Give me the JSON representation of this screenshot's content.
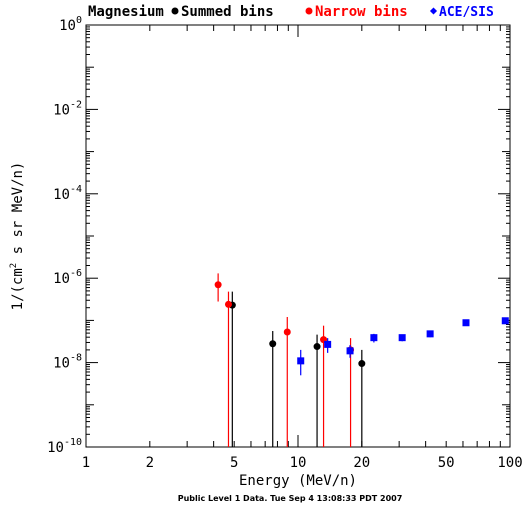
{
  "legend": {
    "species": "Magnesium",
    "summed": "Summed bins",
    "narrow": "Narrow bins",
    "ace": "ACE/SIS"
  },
  "footer": "Public Level 1 Data. Tue Sep  4 13:08:33 PDT 2007",
  "colors": {
    "summed": "#000000",
    "narrow": "#ff0000",
    "ace": "#0000ff"
  },
  "chart_data": {
    "type": "scatter",
    "xlabel": "Energy (MeV/n)",
    "ylabel_main": "1/(cm",
    "ylabel_sup": "2",
    "ylabel_rest": " s sr MeV/n)",
    "x_scale": "log",
    "y_scale": "log",
    "xlim": [
      1,
      100
    ],
    "ylim": [
      1e-10,
      1
    ],
    "x_ticks": [
      {
        "v": 1,
        "label": "1"
      },
      {
        "v": 2,
        "label": "2"
      },
      {
        "v": 5,
        "label": "5"
      },
      {
        "v": 10,
        "label": "10"
      },
      {
        "v": 20,
        "label": "20"
      },
      {
        "v": 50,
        "label": "50"
      },
      {
        "v": 100,
        "label": "100"
      }
    ],
    "y_ticks": [
      {
        "v": 1,
        "base": "10",
        "exp": "0"
      },
      {
        "v": 0.01,
        "base": "10",
        "exp": "-2"
      },
      {
        "v": 0.0001,
        "base": "10",
        "exp": "-4"
      },
      {
        "v": 1e-06,
        "base": "10",
        "exp": "-6"
      },
      {
        "v": 1e-08,
        "base": "10",
        "exp": "-8"
      },
      {
        "v": 1e-10,
        "base": "10",
        "exp": "-10"
      }
    ],
    "series": [
      {
        "name": "Summed bins",
        "color": "#000000",
        "marker": "circle",
        "points": [
          {
            "x": 4.9,
            "y": 2.3e-07,
            "ylo": 1e-10,
            "yhi": 4.8e-07,
            "xerr": 0.15
          },
          {
            "x": 7.6,
            "y": 2.8e-08,
            "ylo": 1e-10,
            "yhi": 5.6e-08,
            "xerr": 0
          },
          {
            "x": 12.3,
            "y": 2.4e-08,
            "ylo": 1e-10,
            "yhi": 4.6e-08,
            "xerr": 0
          },
          {
            "x": 20.0,
            "y": 9.5e-09,
            "ylo": 1e-10,
            "yhi": 2e-08,
            "xerr": 0
          }
        ]
      },
      {
        "name": "Narrow bins",
        "color": "#ff0000",
        "marker": "circle",
        "points": [
          {
            "x": 4.2,
            "y": 7e-07,
            "ylo": 2.8e-07,
            "yhi": 1.3e-06,
            "xerr": 0
          },
          {
            "x": 4.7,
            "y": 2.4e-07,
            "ylo": 1e-10,
            "yhi": 4.8e-07,
            "xerr": 0
          },
          {
            "x": 8.9,
            "y": 5.3e-08,
            "ylo": 1e-10,
            "yhi": 1.2e-07,
            "xerr": 0
          },
          {
            "x": 13.2,
            "y": 3.5e-08,
            "ylo": 1e-10,
            "yhi": 7.5e-08,
            "xerr": 0
          },
          {
            "x": 17.7,
            "y": 2e-08,
            "ylo": 1e-10,
            "yhi": 3.8e-08,
            "xerr": 0
          }
        ]
      },
      {
        "name": "ACE/SIS",
        "color": "#0000ff",
        "marker": "square",
        "points": [
          {
            "x": 10.3,
            "y": 1.1e-08,
            "ylo": 5e-09,
            "yhi": 2e-08,
            "xerr": 0
          },
          {
            "x": 13.8,
            "y": 2.7e-08,
            "ylo": 1.7e-08,
            "yhi": 3.8e-08,
            "xerr": 0
          },
          {
            "x": 17.6,
            "y": 1.9e-08,
            "ylo": 1.3e-08,
            "yhi": 2.6e-08,
            "xerr": 0
          },
          {
            "x": 22.8,
            "y": 3.9e-08,
            "ylo": 3e-08,
            "yhi": 4.8e-08,
            "xerr": 0
          },
          {
            "x": 31.0,
            "y": 3.9e-08,
            "ylo": 3.2e-08,
            "yhi": 4.6e-08,
            "xerr": 0
          },
          {
            "x": 42.0,
            "y": 4.8e-08,
            "ylo": 4e-08,
            "yhi": 5.6e-08,
            "xerr": 0
          },
          {
            "x": 62.0,
            "y": 8.8e-08,
            "ylo": 7.8e-08,
            "yhi": 9.8e-08,
            "xerr": 0
          },
          {
            "x": 95.0,
            "y": 9.8e-08,
            "ylo": 8.8e-08,
            "yhi": 1.08e-07,
            "xerr": 0
          }
        ]
      }
    ]
  }
}
